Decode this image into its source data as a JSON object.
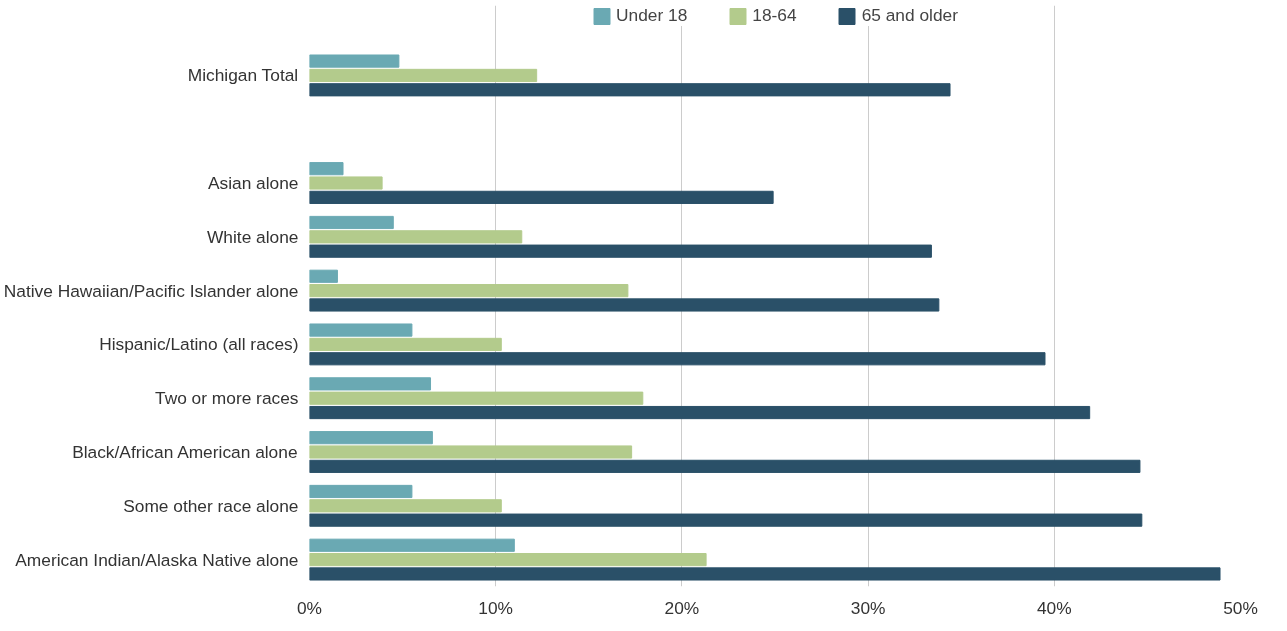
{
  "chart_data": {
    "type": "bar",
    "orientation": "horizontal",
    "categories": [
      "Michigan Total",
      null,
      "Asian alone",
      "White alone",
      "Native Hawaiian/Pacific Islander alone",
      "Hispanic/Latino (all races)",
      "Two or more races",
      "Black/African American alone",
      "Some other race alone",
      "American Indian/Alaska Native alone"
    ],
    "series": [
      {
        "name": "Under 18",
        "color": "#6aa9b3",
        "values": [
          4.8,
          null,
          1.8,
          4.5,
          1.5,
          5.5,
          6.5,
          6.6,
          5.5,
          11.0
        ]
      },
      {
        "name": "18-64",
        "color": "#b3cb8c",
        "values": [
          12.2,
          null,
          3.9,
          11.4,
          17.1,
          10.3,
          17.9,
          17.3,
          10.3,
          21.3
        ]
      },
      {
        "name": "65 and older",
        "color": "#2a5068",
        "values": [
          34.4,
          null,
          24.9,
          33.4,
          33.8,
          39.5,
          41.9,
          44.6,
          44.7,
          48.9
        ]
      }
    ],
    "xlim": [
      0,
      50
    ],
    "xticks": [
      {
        "value": 0,
        "label": "0%"
      },
      {
        "value": 10,
        "label": "10%"
      },
      {
        "value": 20,
        "label": "20%"
      },
      {
        "value": 30,
        "label": "30%"
      },
      {
        "value": 40,
        "label": "40%"
      },
      {
        "value": 50,
        "label": "50%"
      }
    ],
    "grid": "x",
    "legend": "top"
  }
}
